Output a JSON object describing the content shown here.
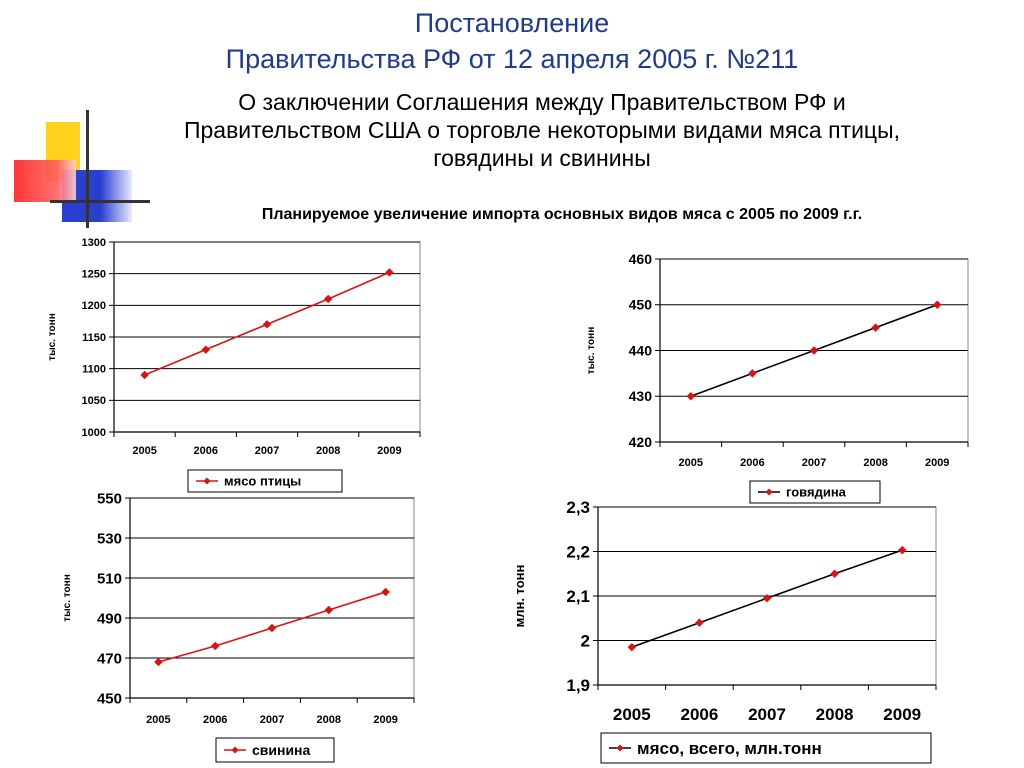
{
  "header": {
    "title_line1": "Постановление",
    "title_line2": "Правительства РФ от 12 апреля 2005 г. №211",
    "subtitle_line1": "О заключении Соглашения между Правительством РФ и",
    "subtitle_line2": "Правительством США о торговле некоторыми видами мяса птицы,",
    "subtitle_line3": "говядины и свинины",
    "chart_heading": "Планируемое увеличение импорта основных видов мяса с 2005 по 2009 г.г."
  },
  "colors": {
    "title": "#1f3a93",
    "red_series": "#e01010",
    "black_series": "#000000",
    "deco_yellow": "#ffd21e",
    "deco_blue": "#2a3fd0",
    "deco_red": "#ff3030"
  },
  "chart_data": [
    {
      "id": "poultry",
      "type": "line",
      "categories": [
        "2005",
        "2006",
        "2007",
        "2008",
        "2009"
      ],
      "series": [
        {
          "name": "мясо птицы",
          "values": [
            1090,
            1130,
            1170,
            1210,
            1252
          ]
        }
      ],
      "ylabel": "тыс. тонн",
      "ylim": [
        1000,
        1300
      ],
      "yticks": [
        "1000",
        "1050",
        "1100",
        "1150",
        "1200",
        "1250",
        "1300"
      ],
      "grid": true,
      "legend": "bottom",
      "line_color": "#e01010"
    },
    {
      "id": "beef",
      "type": "line",
      "categories": [
        "2005",
        "2006",
        "2007",
        "2008",
        "2009"
      ],
      "series": [
        {
          "name": "говядина",
          "values": [
            430,
            435,
            440,
            445,
            450
          ]
        }
      ],
      "ylabel": "тыс. тонн",
      "ylim": [
        420,
        460
      ],
      "yticks": [
        "420",
        "430",
        "440",
        "450",
        "460"
      ],
      "grid": true,
      "legend": "bottom",
      "line_color": "#000000"
    },
    {
      "id": "pork",
      "type": "line",
      "categories": [
        "2005",
        "2006",
        "2007",
        "2008",
        "2009"
      ],
      "series": [
        {
          "name": "свинина",
          "values": [
            468,
            476,
            485,
            494,
            503
          ]
        }
      ],
      "ylabel": "тыс. тонн",
      "ylim": [
        450,
        550
      ],
      "yticks": [
        "450",
        "470",
        "490",
        "510",
        "530",
        "550"
      ],
      "grid": true,
      "legend": "bottom",
      "line_color": "#e01010"
    },
    {
      "id": "total",
      "type": "line",
      "categories": [
        "2005",
        "2006",
        "2007",
        "2008",
        "2009"
      ],
      "series": [
        {
          "name": "мясо, всего, млн.тонн",
          "values": [
            1.985,
            2.04,
            2.095,
            2.15,
            2.203
          ]
        }
      ],
      "ylabel": "млн. тонн",
      "ylim": [
        1.9,
        2.3
      ],
      "yticks": [
        "1,9",
        "2",
        "2,1",
        "2,2",
        "2,3"
      ],
      "grid": true,
      "legend": "bottom",
      "line_color": "#000000"
    }
  ]
}
